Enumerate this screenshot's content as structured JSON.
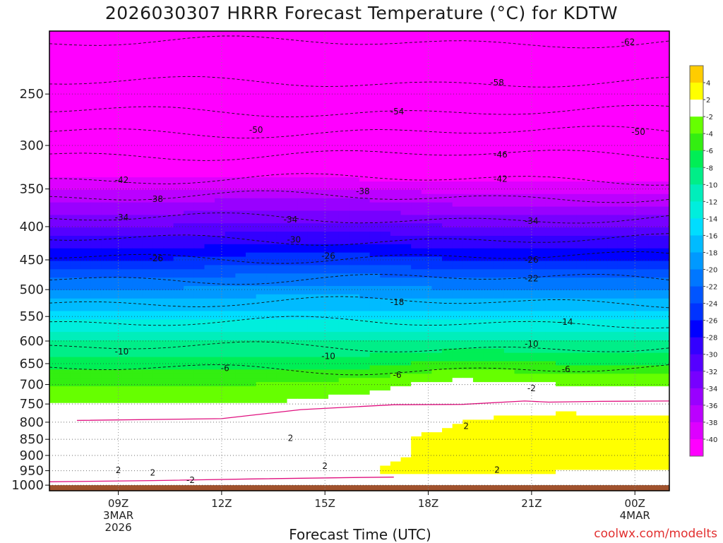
{
  "title": "2026030307 HRRR Forecast Temperature (°C) for KDTW",
  "xlabel": "Forecast Time (UTC)",
  "credit": "coolwx.com/modelts",
  "chart_data": {
    "type": "heatmap",
    "subtype": "time-height cross section (filled contours)",
    "title": "2026030307 HRRR Forecast Temperature (°C) for KDTW",
    "xlabel": "Forecast Time (UTC)",
    "ylabel": "",
    "y_axis": {
      "scale": "log",
      "reversed": true,
      "ticks": [
        1000,
        950,
        900,
        850,
        800,
        750,
        700,
        650,
        600,
        550,
        500,
        450,
        400,
        350,
        300,
        250
      ],
      "range": [
        1020,
        200
      ]
    },
    "x_axis": {
      "range_hours": [
        7,
        25
      ],
      "ticks": [
        {
          "hour": 9,
          "lines": [
            "09Z",
            "3MAR",
            "2026"
          ]
        },
        {
          "hour": 12,
          "lines": [
            "12Z"
          ]
        },
        {
          "hour": 15,
          "lines": [
            "15Z"
          ]
        },
        {
          "hour": 18,
          "lines": [
            "18Z"
          ]
        },
        {
          "hour": 21,
          "lines": [
            "21Z"
          ]
        },
        {
          "hour": 24,
          "lines": [
            "00Z",
            "4MAR"
          ]
        }
      ]
    },
    "grid": true,
    "colorbar": {
      "placement": "right",
      "labels": [
        "4",
        "2",
        "-2",
        "-4",
        "-6",
        "-8",
        "-10",
        "-12",
        "-14",
        "-16",
        "-18",
        "-20",
        "-22",
        "-24",
        "-26",
        "-28",
        "-30",
        "-32",
        "-34",
        "-36",
        "-38",
        "-40"
      ],
      "bins": [
        {
          "low": 4,
          "high": 6,
          "color": "#ffcc00"
        },
        {
          "low": 2,
          "high": 4,
          "color": "#ffff00"
        },
        {
          "low": -2,
          "high": 2,
          "color": "#ffffff"
        },
        {
          "low": -4,
          "high": -2,
          "color": "#66ff00"
        },
        {
          "low": -6,
          "high": -4,
          "color": "#33ee11"
        },
        {
          "low": -8,
          "high": -6,
          "color": "#00ee55"
        },
        {
          "low": -10,
          "high": -8,
          "color": "#00ee88"
        },
        {
          "low": -12,
          "high": -10,
          "color": "#00eebb"
        },
        {
          "low": -14,
          "high": -12,
          "color": "#00eedd"
        },
        {
          "low": -16,
          "high": -14,
          "color": "#00ddff"
        },
        {
          "low": -18,
          "high": -16,
          "color": "#00bbff"
        },
        {
          "low": -20,
          "high": -18,
          "color": "#0099ff"
        },
        {
          "low": -22,
          "high": -20,
          "color": "#0077ff"
        },
        {
          "low": -24,
          "high": -22,
          "color": "#0055ff"
        },
        {
          "low": -26,
          "high": -24,
          "color": "#0033ff"
        },
        {
          "low": -28,
          "high": -26,
          "color": "#0000ff"
        },
        {
          "low": -30,
          "high": -28,
          "color": "#3300ff"
        },
        {
          "low": -32,
          "high": -30,
          "color": "#5500ff"
        },
        {
          "low": -34,
          "high": -32,
          "color": "#7700ff"
        },
        {
          "low": -36,
          "high": -34,
          "color": "#9900ff"
        },
        {
          "low": -38,
          "high": -36,
          "color": "#bb00ff"
        },
        {
          "low": -40,
          "high": -38,
          "color": "#dd00ff"
        },
        {
          "low": -90,
          "high": -40,
          "color": "#ff00ff"
        }
      ]
    },
    "ground_color": "#a0522d",
    "freezing_line_color": "#e0107f",
    "temperature_profile": {
      "pressure_levels": [
        1000,
        950,
        900,
        850,
        800,
        750,
        700,
        650,
        600,
        550,
        500,
        450,
        400,
        350,
        300,
        250,
        200
      ],
      "hours": [
        7,
        10,
        13,
        16,
        19,
        22,
        25
      ],
      "values_c": [
        [
          -2,
          -1,
          -1,
          0,
          0,
          1,
          1
        ],
        [
          2,
          1,
          0,
          2,
          3,
          2,
          2
        ],
        [
          2,
          0,
          2,
          1,
          3,
          3,
          2
        ],
        [
          0,
          -1,
          0,
          1,
          3,
          3,
          3
        ],
        [
          -1,
          -1,
          -1,
          0,
          2,
          3,
          3
        ],
        [
          -2,
          -2,
          -2,
          -1,
          1,
          1,
          0
        ],
        [
          -4,
          -4,
          -4,
          -3,
          -1,
          -2,
          -2
        ],
        [
          -7,
          -7,
          -7,
          -7,
          -5,
          -6,
          -6
        ],
        [
          -10,
          -10,
          -10,
          -10,
          -10,
          -10,
          -10
        ],
        [
          -15,
          -15,
          -15,
          -15,
          -15,
          -15,
          -15
        ],
        [
          -20,
          -20,
          -19,
          -19,
          -20,
          -20,
          -20
        ],
        [
          -26,
          -26,
          -25,
          -25,
          -26,
          -26,
          -26
        ],
        [
          -32,
          -32,
          -31,
          -31,
          -32,
          -32,
          -32
        ],
        [
          -38,
          -38,
          -38,
          -38,
          -39,
          -39,
          -39
        ],
        [
          -46,
          -46,
          -47,
          -47,
          -47,
          -47,
          -47
        ],
        [
          -55,
          -55,
          -55,
          -55,
          -55,
          -55,
          -55
        ],
        [
          -62,
          -62,
          -63,
          -63,
          -62,
          -62,
          -62
        ]
      ]
    },
    "contour_labels": [
      {
        "text": "-62",
        "hour": 23.8,
        "p": 208
      },
      {
        "text": "-58",
        "hour": 20.0,
        "p": 240
      },
      {
        "text": "-54",
        "hour": 17.1,
        "p": 266
      },
      {
        "text": "-50",
        "hour": 13.0,
        "p": 284
      },
      {
        "text": "-50",
        "hour": 24.1,
        "p": 286
      },
      {
        "text": "-46",
        "hour": 20.1,
        "p": 310
      },
      {
        "text": "-42",
        "hour": 9.1,
        "p": 339
      },
      {
        "text": "-42",
        "hour": 20.1,
        "p": 338
      },
      {
        "text": "-38",
        "hour": 10.1,
        "p": 363
      },
      {
        "text": "-38",
        "hour": 16.1,
        "p": 353
      },
      {
        "text": "-34",
        "hour": 9.1,
        "p": 387
      },
      {
        "text": "-34",
        "hour": 14.0,
        "p": 390
      },
      {
        "text": "-34",
        "hour": 21.0,
        "p": 392
      },
      {
        "text": "-30",
        "hour": 14.1,
        "p": 419
      },
      {
        "text": "-26",
        "hour": 10.1,
        "p": 448
      },
      {
        "text": "-26",
        "hour": 15.1,
        "p": 444
      },
      {
        "text": "-26",
        "hour": 21.0,
        "p": 450
      },
      {
        "text": "-22",
        "hour": 21.0,
        "p": 481
      },
      {
        "text": "-18",
        "hour": 17.1,
        "p": 523
      },
      {
        "text": "-14",
        "hour": 22.0,
        "p": 561
      },
      {
        "text": "-10",
        "hour": 9.1,
        "p": 623
      },
      {
        "text": "-10",
        "hour": 15.1,
        "p": 633
      },
      {
        "text": "-10",
        "hour": 21.0,
        "p": 606
      },
      {
        "text": "-6",
        "hour": 12.1,
        "p": 661
      },
      {
        "text": "-6",
        "hour": 17.1,
        "p": 677
      },
      {
        "text": "-6",
        "hour": 22.0,
        "p": 663
      },
      {
        "text": "-2",
        "hour": 21.0,
        "p": 710
      },
      {
        "text": "2",
        "hour": 14.0,
        "p": 847
      },
      {
        "text": "2",
        "hour": 19.1,
        "p": 811
      },
      {
        "text": "2",
        "hour": 9.0,
        "p": 949
      },
      {
        "text": "2",
        "hour": 10.0,
        "p": 957
      },
      {
        "text": "2",
        "hour": 15.0,
        "p": 935
      },
      {
        "text": "2",
        "hour": 20.0,
        "p": 947
      },
      {
        "text": "-2",
        "hour": 11.1,
        "p": 983
      }
    ]
  }
}
